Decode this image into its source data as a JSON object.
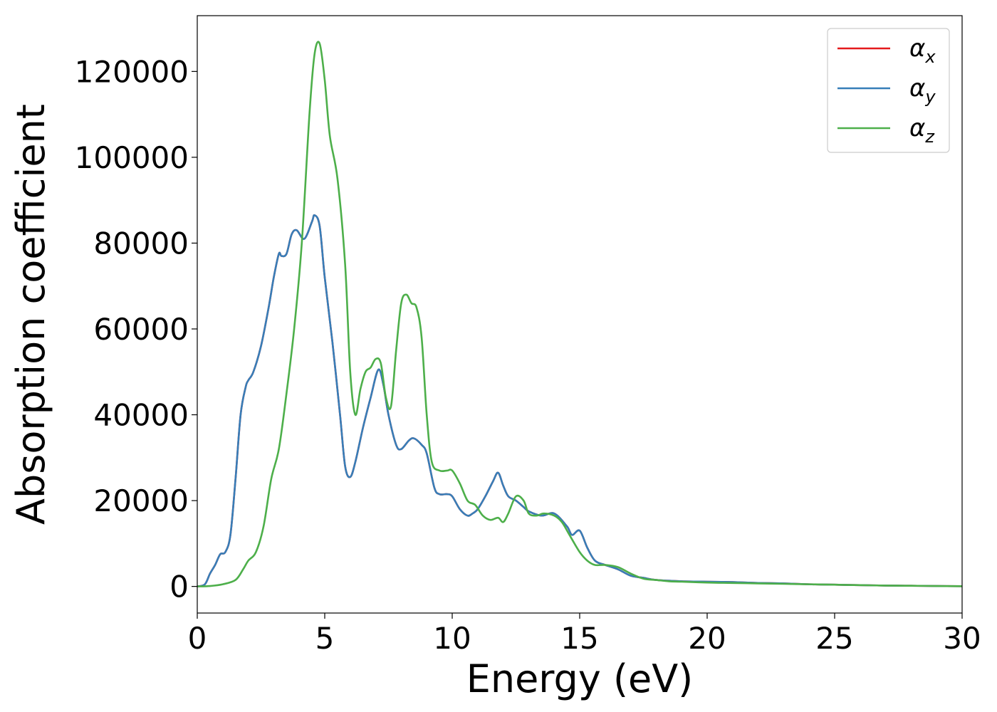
{
  "chart_data": {
    "type": "line",
    "xlabel": "Energy (eV)",
    "ylabel": "Absorption coefficient",
    "xlim": [
      0,
      30
    ],
    "ylim": [
      -6200,
      133000
    ],
    "xticks": [
      0,
      5,
      10,
      15,
      20,
      25,
      30
    ],
    "xtick_labels": [
      "0",
      "5",
      "10",
      "15",
      "20",
      "25",
      "30"
    ],
    "yticks": [
      0,
      20000,
      40000,
      60000,
      80000,
      100000,
      120000
    ],
    "ytick_labels": [
      "0",
      "20000",
      "40000",
      "60000",
      "80000",
      "100000",
      "120000"
    ],
    "grid": false,
    "legend_position": "top-right",
    "series": [
      {
        "name": "α",
        "subscript": "x",
        "color": "#e41a1c",
        "x": [
          0,
          0.3,
          0.5,
          0.7,
          0.9,
          1.1,
          1.3,
          1.5,
          1.7,
          1.9,
          2.0,
          2.2,
          2.5,
          2.8,
          3.0,
          3.2,
          3.3,
          3.5,
          3.7,
          3.9,
          4.2,
          4.5,
          4.6,
          4.8,
          5.0,
          5.3,
          5.6,
          5.8,
          6.0,
          6.2,
          6.5,
          6.8,
          7.1,
          7.3,
          7.5,
          7.8,
          8.0,
          8.3,
          8.5,
          8.8,
          9.0,
          9.3,
          9.5,
          9.8,
          10.0,
          10.3,
          10.6,
          10.8,
          11.0,
          11.3,
          11.6,
          11.8,
          12.0,
          12.2,
          12.5,
          12.8,
          13.0,
          13.5,
          14.0,
          14.5,
          14.7,
          15.0,
          15.3,
          15.6,
          16.0,
          16.5,
          17.0,
          17.5,
          18.0,
          19.0,
          20.0,
          21.0,
          22.0,
          23.0,
          24.0,
          25.0,
          26.0,
          27.0,
          28.0,
          29.0,
          30.0
        ],
        "y": [
          0,
          500,
          3000,
          5000,
          7500,
          8000,
          12000,
          25000,
          40000,
          46500,
          48000,
          50000,
          56000,
          65000,
          72000,
          77500,
          77000,
          77500,
          82000,
          83000,
          81000,
          85000,
          86500,
          84000,
          72000,
          57000,
          40000,
          28000,
          25500,
          29000,
          37000,
          44000,
          50500,
          47000,
          40000,
          33000,
          32000,
          34000,
          34500,
          33000,
          31000,
          23000,
          21500,
          21500,
          21000,
          18000,
          16500,
          17000,
          18000,
          21000,
          24500,
          26500,
          23500,
          21000,
          20000,
          18500,
          17500,
          16500,
          17000,
          14000,
          12000,
          13000,
          9000,
          6000,
          5000,
          4000,
          2500,
          2000,
          1500,
          1200,
          1100,
          1000,
          800,
          700,
          500,
          400,
          300,
          200,
          150,
          100,
          50
        ]
      },
      {
        "name": "α",
        "subscript": "y",
        "color": "#377eb8",
        "x": [
          0,
          0.3,
          0.5,
          0.7,
          0.9,
          1.1,
          1.3,
          1.5,
          1.7,
          1.9,
          2.0,
          2.2,
          2.5,
          2.8,
          3.0,
          3.2,
          3.3,
          3.5,
          3.7,
          3.9,
          4.2,
          4.5,
          4.6,
          4.8,
          5.0,
          5.3,
          5.6,
          5.8,
          6.0,
          6.2,
          6.5,
          6.8,
          7.1,
          7.3,
          7.5,
          7.8,
          8.0,
          8.3,
          8.5,
          8.8,
          9.0,
          9.3,
          9.5,
          9.8,
          10.0,
          10.3,
          10.6,
          10.8,
          11.0,
          11.3,
          11.6,
          11.8,
          12.0,
          12.2,
          12.5,
          12.8,
          13.0,
          13.5,
          14.0,
          14.5,
          14.7,
          15.0,
          15.3,
          15.6,
          16.0,
          16.5,
          17.0,
          17.5,
          18.0,
          19.0,
          20.0,
          21.0,
          22.0,
          23.0,
          24.0,
          25.0,
          26.0,
          27.0,
          28.0,
          29.0,
          30.0
        ],
        "y": [
          0,
          500,
          3000,
          5000,
          7500,
          8000,
          12000,
          25000,
          40000,
          46500,
          48000,
          50000,
          56000,
          65000,
          72000,
          77500,
          77000,
          77500,
          82000,
          83000,
          81000,
          85000,
          86500,
          84000,
          72000,
          57000,
          40000,
          28000,
          25500,
          29000,
          37000,
          44000,
          50500,
          47000,
          40000,
          33000,
          32000,
          34000,
          34500,
          33000,
          31000,
          23000,
          21500,
          21500,
          21000,
          18000,
          16500,
          17000,
          18000,
          21000,
          24500,
          26500,
          23500,
          21000,
          20000,
          18500,
          17500,
          16500,
          17000,
          14000,
          12000,
          13000,
          9000,
          6000,
          5000,
          4000,
          2500,
          2000,
          1500,
          1200,
          1100,
          1000,
          800,
          700,
          500,
          400,
          300,
          200,
          150,
          100,
          50
        ]
      },
      {
        "name": "α",
        "subscript": "z",
        "color": "#4daf4a",
        "x": [
          0,
          0.5,
          1.0,
          1.5,
          1.8,
          2.0,
          2.3,
          2.6,
          2.9,
          3.2,
          3.5,
          3.8,
          4.1,
          4.4,
          4.6,
          4.8,
          5.0,
          5.2,
          5.5,
          5.8,
          6.0,
          6.2,
          6.4,
          6.6,
          6.8,
          7.0,
          7.2,
          7.4,
          7.6,
          7.8,
          8.0,
          8.2,
          8.4,
          8.6,
          8.8,
          9.0,
          9.2,
          9.5,
          9.8,
          10.0,
          10.3,
          10.6,
          10.9,
          11.2,
          11.5,
          11.8,
          12.0,
          12.2,
          12.5,
          12.8,
          13.0,
          13.3,
          13.6,
          14.0,
          14.3,
          14.6,
          15.0,
          15.3,
          15.6,
          16.0,
          16.5,
          17.0,
          17.5,
          18.0,
          18.5,
          19.0,
          20.0,
          21.0,
          22.0,
          23.0,
          24.0,
          25.0,
          26.0,
          27.0,
          28.0,
          29.0,
          30.0
        ],
        "y": [
          0,
          100,
          500,
          1500,
          4000,
          6000,
          8000,
          14000,
          25000,
          32000,
          45000,
          60000,
          80000,
          110000,
          124000,
          126500,
          118000,
          105000,
          95000,
          75000,
          50000,
          40000,
          46000,
          50000,
          51000,
          53000,
          52000,
          44000,
          42000,
          55000,
          66000,
          68000,
          66000,
          65000,
          58000,
          40000,
          29000,
          27000,
          27000,
          27000,
          24000,
          20000,
          19000,
          16500,
          15500,
          16000,
          15000,
          17000,
          21000,
          20000,
          17000,
          16500,
          17000,
          16500,
          15000,
          12000,
          8000,
          6000,
          5000,
          5000,
          4500,
          3000,
          1800,
          1500,
          1200,
          1100,
          900,
          800,
          700,
          600,
          500,
          400,
          300,
          200,
          150,
          100,
          50
        ]
      }
    ]
  }
}
